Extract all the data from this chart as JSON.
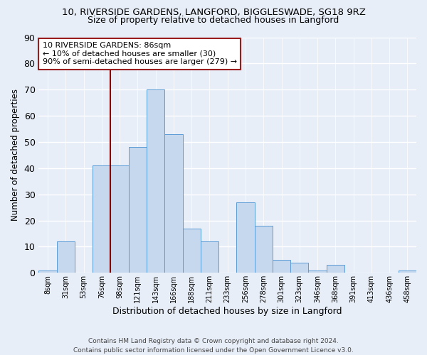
{
  "title1": "10, RIVERSIDE GARDENS, LANGFORD, BIGGLESWADE, SG18 9RZ",
  "title2": "Size of property relative to detached houses in Langford",
  "xlabel": "Distribution of detached houses by size in Langford",
  "ylabel": "Number of detached properties",
  "bar_color": "#c5d8ed",
  "bar_edge_color": "#5b9bd5",
  "bin_labels": [
    "8sqm",
    "31sqm",
    "53sqm",
    "76sqm",
    "98sqm",
    "121sqm",
    "143sqm",
    "166sqm",
    "188sqm",
    "211sqm",
    "233sqm",
    "256sqm",
    "278sqm",
    "301sqm",
    "323sqm",
    "346sqm",
    "368sqm",
    "391sqm",
    "413sqm",
    "436sqm",
    "458sqm"
  ],
  "bin_values": [
    1,
    12,
    0,
    41,
    41,
    48,
    70,
    53,
    17,
    12,
    0,
    27,
    18,
    5,
    4,
    1,
    3,
    0,
    0,
    0,
    1
  ],
  "ylim": [
    0,
    90
  ],
  "yticks": [
    0,
    10,
    20,
    30,
    40,
    50,
    60,
    70,
    80,
    90
  ],
  "vline_x": 4.0,
  "vline_color": "#8b0000",
  "annotation_text": "10 RIVERSIDE GARDENS: 86sqm\n← 10% of detached houses are smaller (30)\n90% of semi-detached houses are larger (279) →",
  "annotation_box_color": "#ffffff",
  "annotation_box_edge": "#9b1c1c",
  "bg_color": "#e8eef8",
  "grid_color": "#ffffff",
  "footer": "Contains HM Land Registry data © Crown copyright and database right 2024.\nContains public sector information licensed under the Open Government Licence v3.0."
}
